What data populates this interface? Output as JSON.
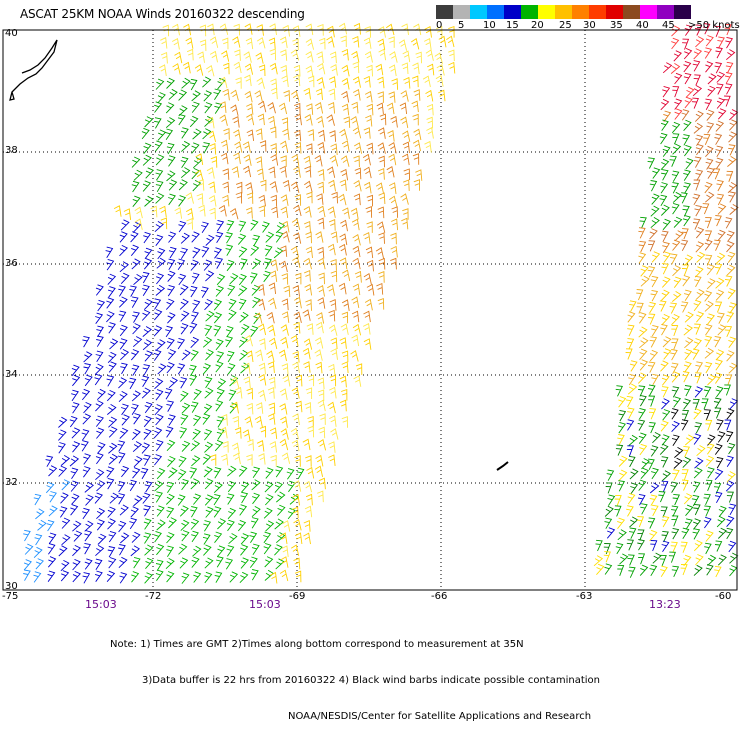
{
  "title": "ASCAT 25KM NOAA Winds 20160322 descending",
  "legend": {
    "labels": [
      "0",
      "5",
      "10",
      "15",
      "20",
      "25",
      "30",
      "35",
      "40",
      "45",
      ">50 knots"
    ],
    "colors": [
      "#3c3c3c",
      "#b4b4b4",
      "#00c8ff",
      "#0070ff",
      "#0000c8",
      "#00b400",
      "#ffff00",
      "#ffc000",
      "#ff8000",
      "#ff3c00",
      "#e00000",
      "#8c4a20",
      "#ff00ff",
      "#9000c0",
      "#2a004a"
    ]
  },
  "axes": {
    "lat_labels": [
      "40",
      "38",
      "36",
      "34",
      "32",
      "30"
    ],
    "lon_labels": [
      "-75",
      "-72",
      "-69",
      "-66",
      "-63",
      "-60"
    ]
  },
  "times": [
    "15:03",
    "15:03",
    "13:23"
  ],
  "notes": [
    "Note: 1) Times are GMT 2)Times along bottom correspond to measurement at 35N",
    "3)Data buffer is 22 hrs from 20160322 4) Black wind barbs indicate possible contamination",
    "NOAA/NESDIS/Center for Satellite Applications and Research"
  ]
}
